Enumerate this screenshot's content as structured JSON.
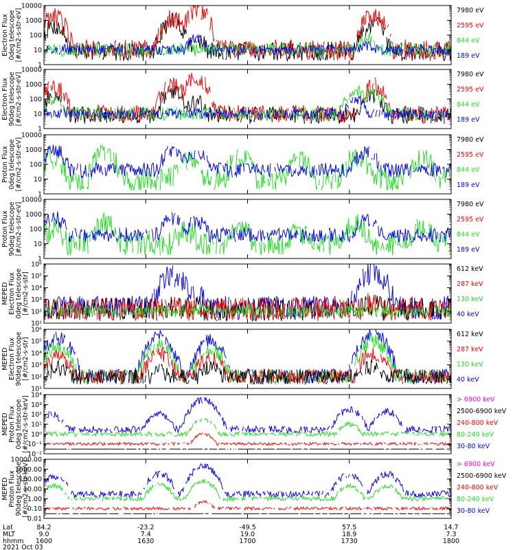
{
  "colors": {
    "black": "#000000",
    "red": "#ff0000",
    "green": "#22dd22",
    "blue": "#0000ff",
    "magenta": "#ff00ff"
  },
  "chart_data": {
    "type": "line",
    "date": "2021 Oct 03",
    "x_axis": {
      "row_labels": [
        "Lat",
        "MLT",
        "hhmm"
      ],
      "ticks": [
        {
          "Lat": "84.2",
          "MLT": "9.0",
          "hhmm": "1600"
        },
        {
          "Lat": "-23.2",
          "MLT": "7.4",
          "hhmm": "1630"
        },
        {
          "Lat": "-49.5",
          "MLT": "19.0",
          "hhmm": "1700"
        },
        {
          "Lat": "57.5",
          "MLT": "18.9",
          "hhmm": "1730"
        },
        {
          "Lat": "14.7",
          "MLT": "7.3",
          "hhmm": "1800"
        }
      ],
      "xlim_minutes": [
        0,
        120
      ]
    },
    "panels": [
      {
        "ylabel": [
          "Electron Flux",
          "0deg telescope",
          "[#/cm2-s-str-eV]"
        ],
        "log": true,
        "ylim": [
          1,
          10000
        ],
        "ytick_labels": [
          "1",
          "10",
          "100",
          "1000",
          "10000"
        ],
        "legend": [
          {
            "label": "7980 eV",
            "color": "black"
          },
          {
            "label": "2595 eV",
            "color": "red"
          },
          {
            "label": "844 eV",
            "color": "green"
          },
          {
            "label": "189 eV",
            "color": "blue"
          }
        ],
        "series": [
          {
            "color": "black",
            "peaks": [
              [
                3,
                400
              ],
              [
                38,
                900
              ],
              [
                45,
                40
              ],
              [
                97,
                600
              ]
            ],
            "floor": 8,
            "noise": 20
          },
          {
            "color": "red",
            "peaks": [
              [
                3,
                1500
              ],
              [
                38,
                1200
              ],
              [
                45,
                5000
              ],
              [
                97,
                2000
              ]
            ],
            "floor": 10,
            "noise": 25
          },
          {
            "color": "green",
            "peaks": [
              [
                95,
                60
              ]
            ],
            "floor": 10,
            "noise": 8
          },
          {
            "color": "blue",
            "peaks": [
              [
                45,
                60
              ],
              [
                95,
                20
              ]
            ],
            "floor": 10,
            "noise": 5
          }
        ]
      },
      {
        "ylabel": [
          "Electron Flux",
          "90deg telescope",
          "[#/cm2-s-str-eV]"
        ],
        "log": true,
        "ylim": [
          1,
          10000
        ],
        "ytick_labels": [
          "1",
          "10",
          "100",
          "1000",
          "10000"
        ],
        "legend": [
          {
            "label": "7980 eV",
            "color": "black"
          },
          {
            "label": "2595 eV",
            "color": "red"
          },
          {
            "label": "844 eV",
            "color": "green"
          },
          {
            "label": "189 eV",
            "color": "blue"
          }
        ],
        "series": [
          {
            "color": "black",
            "peaks": [
              [
                3,
                150
              ],
              [
                38,
                400
              ],
              [
                45,
                60
              ],
              [
                97,
                200
              ]
            ],
            "floor": 8,
            "noise": 15
          },
          {
            "color": "red",
            "peaks": [
              [
                3,
                700
              ],
              [
                38,
                900
              ],
              [
                45,
                2500
              ],
              [
                97,
                800
              ]
            ],
            "floor": 10,
            "noise": 15
          },
          {
            "color": "green",
            "peaks": [
              [
                3,
                80
              ],
              [
                92,
                300
              ],
              [
                97,
                200
              ]
            ],
            "floor": 10,
            "noise": 8
          },
          {
            "color": "blue",
            "peaks": [
              [
                92,
                100
              ]
            ],
            "floor": 10,
            "noise": 5
          }
        ]
      },
      {
        "ylabel": [
          "Proton Flux",
          "0deg telescope",
          "[#/cm2-s-str-eV]"
        ],
        "log": true,
        "ylim": [
          1,
          10000
        ],
        "ytick_labels": [
          "1",
          "10",
          "100",
          "1000",
          "10000"
        ],
        "legend": [
          {
            "label": "7980 eV",
            "color": "black"
          },
          {
            "label": "2595 eV",
            "color": "red"
          },
          {
            "label": "844 eV",
            "color": "green"
          },
          {
            "label": "189 eV",
            "color": "blue"
          }
        ],
        "series": [
          {
            "color": "green",
            "peaks": [
              [
                3,
                200
              ],
              [
                18,
                500
              ],
              [
                42,
                150
              ],
              [
                58,
                300
              ],
              [
                75,
                200
              ],
              [
                92,
                300
              ],
              [
                112,
                200
              ]
            ],
            "floor": 10,
            "noise": 40
          },
          {
            "color": "blue",
            "peaks": [
              [
                3,
                1000
              ],
              [
                38,
                800
              ],
              [
                45,
                600
              ],
              [
                95,
                700
              ]
            ],
            "floor": 40,
            "noise": 10
          }
        ]
      },
      {
        "ylabel": [
          "Proton Flux",
          "90deg telescope",
          "[#/cm2-s-str-eV]"
        ],
        "log": true,
        "ylim": [
          1,
          10000
        ],
        "ytick_labels": [
          "1",
          "10",
          "100",
          "1000",
          "10000"
        ],
        "legend": [
          {
            "label": "7980 eV",
            "color": "black"
          },
          {
            "label": "2595 eV",
            "color": "red"
          },
          {
            "label": "844 eV",
            "color": "green"
          },
          {
            "label": "189 eV",
            "color": "blue"
          }
        ],
        "series": [
          {
            "color": "green",
            "peaks": [
              [
                3,
                100
              ],
              [
                18,
                200
              ],
              [
                42,
                80
              ],
              [
                58,
                100
              ],
              [
                75,
                60
              ],
              [
                92,
                200
              ],
              [
                112,
                150
              ]
            ],
            "floor": 10,
            "noise": 40
          },
          {
            "color": "blue",
            "peaks": [
              [
                3,
                600
              ],
              [
                38,
                500
              ],
              [
                45,
                300
              ],
              [
                95,
                500
              ]
            ],
            "floor": 40,
            "noise": 10
          }
        ]
      },
      {
        "ylabel": [
          "MEPED",
          "Electron Flux",
          "0deg telescope",
          "[#/cm2-s-str]"
        ],
        "log": true,
        "ylim": [
          10,
          1000000
        ],
        "ytick_labels": [
          "10¹",
          "10²",
          "10³",
          "10⁴",
          "10⁵",
          "10⁶"
        ],
        "legend": [
          {
            "label": "612 keV",
            "color": "black"
          },
          {
            "label": "287 keV",
            "color": "red"
          },
          {
            "label": "130 keV",
            "color": "green"
          },
          {
            "label": "40 keV",
            "color": "blue"
          }
        ],
        "series": [
          {
            "color": "blue",
            "peaks": [
              [
                38,
                100000
              ],
              [
                45,
                2000
              ],
              [
                97,
                200000
              ]
            ],
            "floor": 200,
            "noise": 100
          },
          {
            "color": "black",
            "peaks": [
              [
                38,
                300
              ],
              [
                97,
                400
              ]
            ],
            "floor": 150,
            "noise": 100
          },
          {
            "color": "red",
            "peaks": [
              [
                38,
                400
              ],
              [
                97,
                600
              ]
            ],
            "floor": 150,
            "noise": 100
          },
          {
            "color": "green",
            "peaks": [],
            "floor": 100,
            "noise": 10
          }
        ]
      },
      {
        "ylabel": [
          "MEPED",
          "Electron Flux",
          "90deg telescope",
          "[#/cm2-s-str]"
        ],
        "log": true,
        "ylim": [
          10,
          1000000
        ],
        "ytick_labels": [
          "10¹",
          "10²",
          "10³",
          "10⁴",
          "10⁵",
          "10⁶"
        ],
        "legend": [
          {
            "label": "612 keV",
            "color": "black"
          },
          {
            "label": "287 keV",
            "color": "red"
          },
          {
            "label": "130 keV",
            "color": "green"
          },
          {
            "label": "40 keV",
            "color": "blue"
          }
        ],
        "series": [
          {
            "color": "blue",
            "peaks": [
              [
                4,
                200000
              ],
              [
                34,
                200000
              ],
              [
                49,
                100000
              ],
              [
                97,
                500000
              ]
            ],
            "floor": 100,
            "noise": 20
          },
          {
            "color": "green",
            "peaks": [
              [
                4,
                30000
              ],
              [
                34,
                50000
              ],
              [
                49,
                20000
              ],
              [
                97,
                100000
              ]
            ],
            "floor": 100,
            "noise": 20
          },
          {
            "color": "red",
            "peaks": [
              [
                4,
                5000
              ],
              [
                34,
                8000
              ],
              [
                49,
                5000
              ],
              [
                97,
                10000
              ]
            ],
            "floor": 100,
            "noise": 20
          },
          {
            "color": "black",
            "peaks": [
              [
                4,
                500
              ],
              [
                34,
                300
              ],
              [
                49,
                600
              ],
              [
                97,
                800
              ]
            ],
            "floor": 100,
            "noise": 20
          }
        ]
      },
      {
        "ylabel": [
          "MEPED",
          "Proton Flux",
          "0deg telescope",
          "[#/cm2-s-str-keV]"
        ],
        "log": true,
        "ylim": [
          0.01,
          10000
        ],
        "ytick_labels": [
          "10⁻²",
          "10⁻¹",
          "10⁰",
          "10¹",
          "10²",
          "10³",
          "10⁴"
        ],
        "legend": [
          {
            "label": "> 6900 keV",
            "color": "magenta"
          },
          {
            "label": "2500-6900 keV",
            "color": "black"
          },
          {
            "label": "240-800 keV",
            "color": "red"
          },
          {
            "label": "80-240 keV",
            "color": "green"
          },
          {
            "label": "30-80 keV",
            "color": "blue"
          }
        ],
        "series": [
          {
            "color": "blue",
            "peaks": [
              [
                2,
                100
              ],
              [
                34,
                100
              ],
              [
                47,
                3000
              ],
              [
                90,
                300
              ],
              [
                101,
                200
              ]
            ],
            "floor": 3,
            "noise": 5
          },
          {
            "color": "green",
            "peaks": [
              [
                47,
                30
              ],
              [
                90,
                10
              ]
            ],
            "floor": 1,
            "noise": 3
          },
          {
            "color": "red",
            "peaks": [
              [
                47,
                1
              ]
            ],
            "floor": 0.1,
            "noise": 2
          },
          {
            "color": "black",
            "peaks": [],
            "floor": 0.03,
            "noise": 1
          }
        ]
      },
      {
        "ylabel": [
          "MEPED",
          "Proton Flux",
          "90deg telescope",
          "[#/cm2-s-str-keV]"
        ],
        "log": true,
        "ylim": [
          0.01,
          10000
        ],
        "ytick_labels": [
          "0.01",
          "0.10",
          "1.00",
          "10.00",
          "100.00",
          "1000.00",
          "10000.00"
        ],
        "legend": [
          {
            "label": "> 6900 keV",
            "color": "magenta"
          },
          {
            "label": "2500-6900 keV",
            "color": "black"
          },
          {
            "label": "240-800 keV",
            "color": "red"
          },
          {
            "label": "80-240 keV",
            "color": "green"
          },
          {
            "label": "30-80 keV",
            "color": "blue"
          }
        ],
        "series": [
          {
            "color": "blue",
            "peaks": [
              [
                3,
                200
              ],
              [
                34,
                300
              ],
              [
                47,
                2000
              ],
              [
                90,
                300
              ],
              [
                101,
                300
              ]
            ],
            "floor": 3,
            "noise": 5
          },
          {
            "color": "green",
            "peaks": [
              [
                3,
                20
              ],
              [
                34,
                30
              ],
              [
                47,
                60
              ],
              [
                90,
                20
              ],
              [
                101,
                20
              ]
            ],
            "floor": 1,
            "noise": 3
          },
          {
            "color": "red",
            "peaks": [
              [
                47,
                0.5
              ]
            ],
            "floor": 0.1,
            "noise": 2
          },
          {
            "color": "black",
            "peaks": [],
            "floor": 0.03,
            "noise": 1
          }
        ]
      }
    ]
  }
}
